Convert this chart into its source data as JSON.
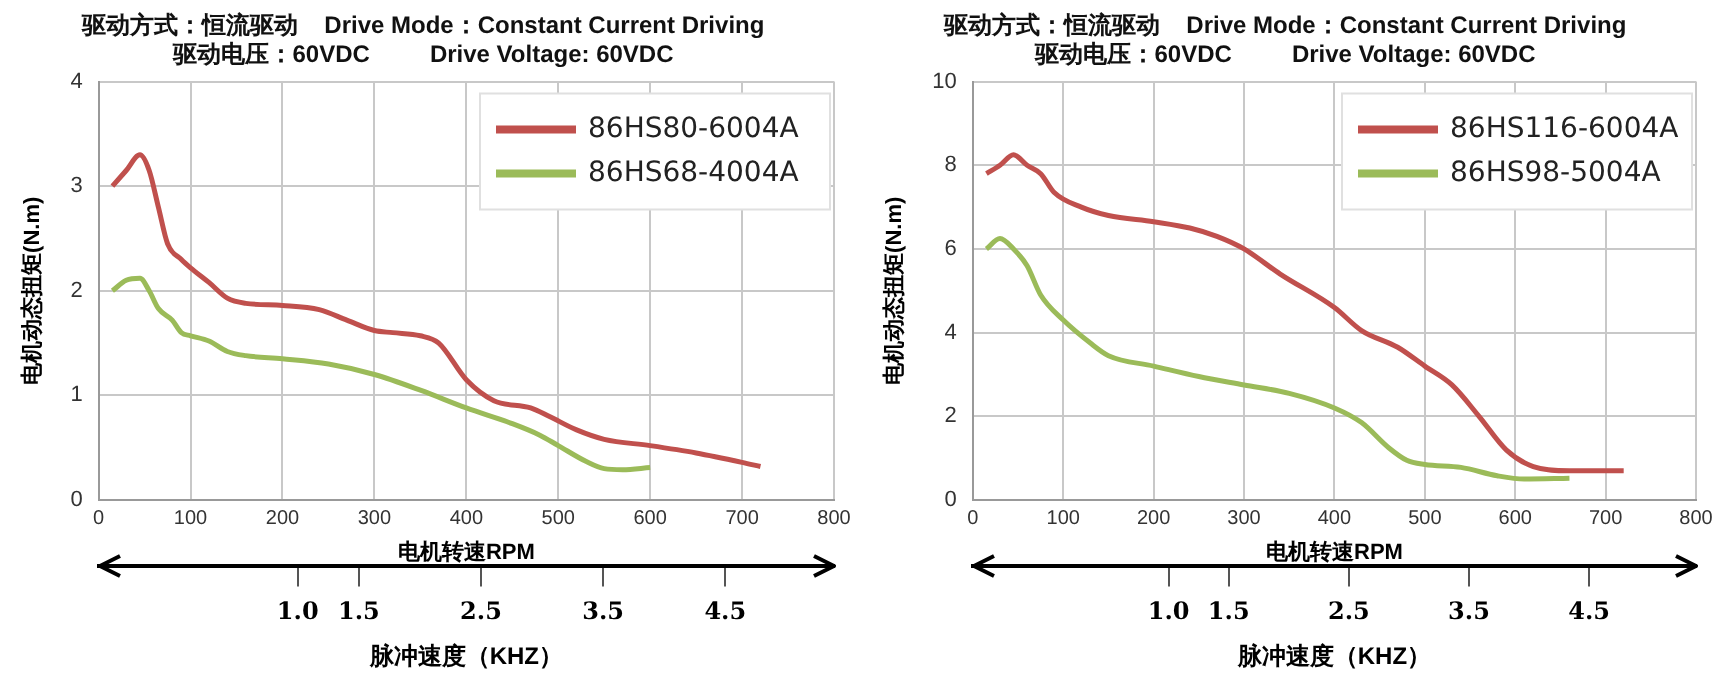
{
  "chart_data": [
    {
      "type": "line",
      "title": "驱动方式：恒流驱动    Drive Mode：Constant Current Driving\n驱动电压：60VDC         Drive Voltage: 60VDC",
      "xlabel": "电机转速RPM",
      "ylabel": "电机动态扭矩(N.m)",
      "x2label": "脉冲速度（KHZ）",
      "xlim": [
        0,
        800
      ],
      "xticks": [
        0,
        100,
        200,
        300,
        400,
        500,
        600,
        700,
        800
      ],
      "ylim": [
        0,
        4
      ],
      "yticks": [
        0,
        1,
        2,
        3,
        4
      ],
      "x2lim": [
        -0.63,
        5.39
      ],
      "x2ticks": [
        {
          "value": 1.0,
          "label": "1.0"
        },
        {
          "value": 1.5,
          "label": "1.5"
        },
        {
          "value": 2.5,
          "label": "2.5"
        },
        {
          "value": 3.5,
          "label": "3.5"
        },
        {
          "value": 4.5,
          "label": "4.5"
        }
      ],
      "grid": true,
      "legend": "top right",
      "marker": "none",
      "line_style": "solid",
      "series": [
        {
          "name": "86HS80-6004A",
          "color": "#c0504d",
          "x": [
            15,
            30,
            45,
            55,
            65,
            75,
            90,
            100,
            120,
            140,
            160,
            200,
            240,
            270,
            300,
            320,
            350,
            370,
            400,
            430,
            470,
            490,
            520,
            550,
            600,
            650,
            700,
            720
          ],
          "values": [
            3.0,
            3.15,
            3.3,
            3.15,
            2.8,
            2.45,
            2.3,
            2.22,
            2.08,
            1.93,
            1.88,
            1.86,
            1.82,
            1.72,
            1.62,
            1.6,
            1.57,
            1.5,
            1.15,
            0.95,
            0.88,
            0.8,
            0.67,
            0.58,
            0.52,
            0.45,
            0.36,
            0.32
          ]
        },
        {
          "name": "86HS68-4004A",
          "color": "#9bbb59",
          "x": [
            15,
            30,
            45,
            55,
            65,
            80,
            90,
            100,
            120,
            140,
            160,
            200,
            250,
            300,
            350,
            400,
            450,
            480,
            500,
            530,
            550,
            570,
            600
          ],
          "values": [
            2.0,
            2.1,
            2.12,
            2.0,
            1.83,
            1.72,
            1.6,
            1.57,
            1.52,
            1.42,
            1.38,
            1.35,
            1.3,
            1.2,
            1.05,
            0.88,
            0.73,
            0.62,
            0.52,
            0.37,
            0.3,
            0.29,
            0.31
          ]
        }
      ]
    },
    {
      "type": "line",
      "title": "驱动方式：恒流驱动    Drive Mode：Constant Current Driving\n驱动电压：60VDC         Drive Voltage: 60VDC",
      "xlabel": "电机转速RPM",
      "ylabel": "电机动态扭矩(N.m)",
      "x2label": "脉冲速度（KHZ）",
      "xlim": [
        0,
        800
      ],
      "xticks": [
        0,
        100,
        200,
        300,
        400,
        500,
        600,
        700,
        800
      ],
      "ylim": [
        0,
        10
      ],
      "yticks": [
        0,
        2,
        4,
        6,
        8,
        10
      ],
      "x2lim": [
        -0.63,
        5.39
      ],
      "x2ticks": [
        {
          "value": 1.0,
          "label": "1.0"
        },
        {
          "value": 1.5,
          "label": "1.5"
        },
        {
          "value": 2.5,
          "label": "2.5"
        },
        {
          "value": 3.5,
          "label": "3.5"
        },
        {
          "value": 4.5,
          "label": "4.5"
        }
      ],
      "grid": true,
      "legend": "top right",
      "marker": "none",
      "line_style": "solid",
      "series": [
        {
          "name": "86HS116-6004A",
          "color": "#c0504d",
          "x": [
            15,
            30,
            45,
            60,
            75,
            90,
            120,
            150,
            200,
            240,
            270,
            300,
            340,
            400,
            430,
            470,
            500,
            530,
            560,
            590,
            620,
            660,
            720
          ],
          "values": [
            7.8,
            8.0,
            8.25,
            8.0,
            7.8,
            7.35,
            7.0,
            6.8,
            6.65,
            6.5,
            6.3,
            6.0,
            5.4,
            4.6,
            4.05,
            3.65,
            3.2,
            2.75,
            2.0,
            1.2,
            0.8,
            0.7,
            0.7
          ]
        },
        {
          "name": "86HS98-5004A",
          "color": "#9bbb59",
          "x": [
            15,
            30,
            45,
            60,
            75,
            100,
            130,
            150,
            200,
            250,
            300,
            350,
            400,
            430,
            460,
            480,
            500,
            540,
            580,
            610,
            660
          ],
          "values": [
            6.0,
            6.25,
            6.0,
            5.6,
            4.9,
            4.3,
            3.75,
            3.45,
            3.2,
            2.95,
            2.75,
            2.55,
            2.2,
            1.85,
            1.25,
            0.95,
            0.85,
            0.78,
            0.58,
            0.5,
            0.52
          ]
        }
      ]
    }
  ]
}
